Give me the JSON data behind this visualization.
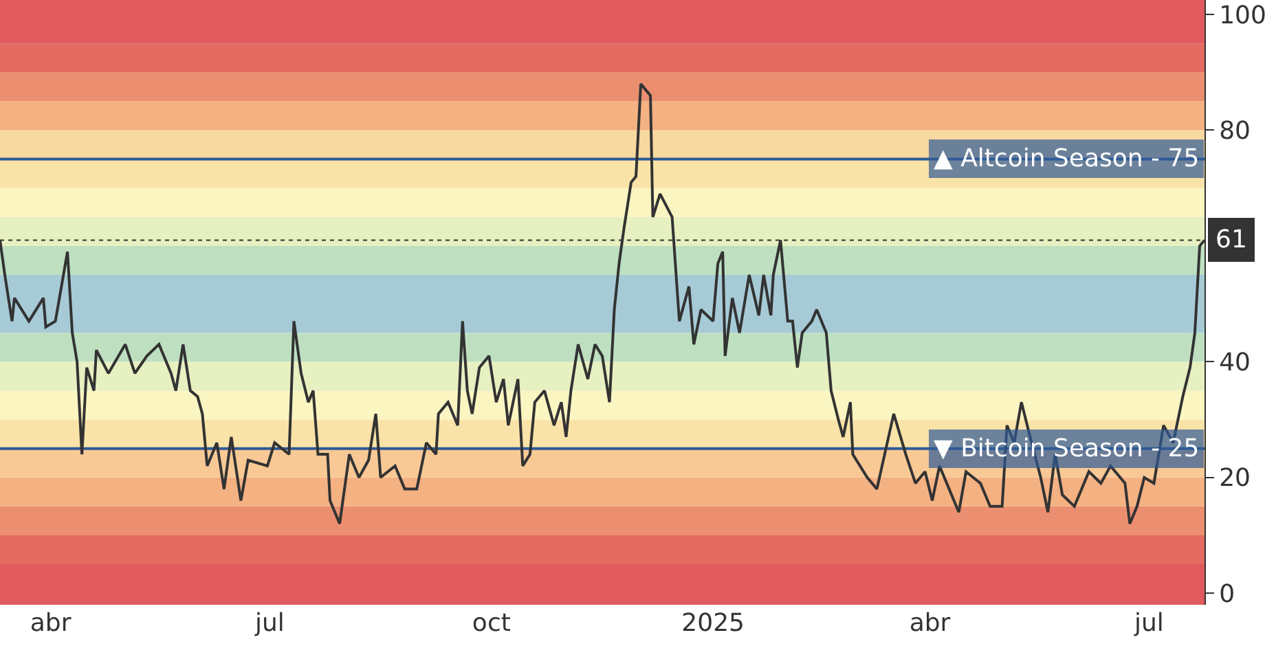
{
  "chart_data": {
    "type": "line",
    "x": [
      "2024-03-11",
      "2024-03-13",
      "2024-03-16",
      "2024-03-17",
      "2024-03-23",
      "2024-03-29",
      "2024-03-30",
      "2024-04-03",
      "2024-04-08",
      "2024-04-10",
      "2024-04-12",
      "2024-04-14",
      "2024-04-16",
      "2024-04-19",
      "2024-04-20",
      "2024-04-25",
      "2024-05-02",
      "2024-05-06",
      "2024-05-11",
      "2024-05-16",
      "2024-05-21",
      "2024-05-23",
      "2024-05-26",
      "2024-05-29",
      "2024-06-01",
      "2024-06-03",
      "2024-06-05",
      "2024-06-09",
      "2024-06-12",
      "2024-06-15",
      "2024-06-19",
      "2024-06-22",
      "2024-06-30",
      "2024-07-03",
      "2024-07-09",
      "2024-07-11",
      "2024-07-14",
      "2024-07-17",
      "2024-07-19",
      "2024-07-21",
      "2024-07-25",
      "2024-07-26",
      "2024-07-30",
      "2024-08-03",
      "2024-08-07",
      "2024-08-11",
      "2024-08-14",
      "2024-08-16",
      "2024-08-22",
      "2024-08-26",
      "2024-08-31",
      "2024-09-04",
      "2024-09-08",
      "2024-09-09",
      "2024-09-13",
      "2024-09-17",
      "2024-09-19",
      "2024-09-21",
      "2024-09-23",
      "2024-09-26",
      "2024-09-30",
      "2024-10-03",
      "2024-10-06",
      "2024-10-08",
      "2024-10-12",
      "2024-10-14",
      "2024-10-17",
      "2024-10-19",
      "2024-10-23",
      "2024-10-27",
      "2024-10-30",
      "2024-11-01",
      "2024-11-03",
      "2024-11-06",
      "2024-11-10",
      "2024-11-13",
      "2024-11-16",
      "2024-11-19",
      "2024-11-21",
      "2024-11-23",
      "2024-11-25",
      "2024-11-28",
      "2024-11-30",
      "2024-12-02",
      "2024-12-06",
      "2024-12-07",
      "2024-12-10",
      "2024-12-15",
      "2024-12-18",
      "2024-12-22",
      "2024-12-24",
      "2024-12-27",
      "2025-01-01",
      "2025-01-03",
      "2025-01-05",
      "2025-01-06",
      "2025-01-09",
      "2025-01-12",
      "2025-01-16",
      "2025-01-20",
      "2025-01-22",
      "2025-01-25",
      "2025-01-26",
      "2025-01-29",
      "2025-02-01",
      "2025-02-03",
      "2025-02-05",
      "2025-02-07",
      "2025-02-11",
      "2025-02-13",
      "2025-02-17",
      "2025-02-19",
      "2025-02-22",
      "2025-02-24",
      "2025-02-27",
      "2025-02-28",
      "2025-03-06",
      "2025-03-10",
      "2025-03-17",
      "2025-03-22",
      "2025-03-26",
      "2025-03-30",
      "2025-04-02",
      "2025-04-05",
      "2025-04-13",
      "2025-04-16",
      "2025-04-22",
      "2025-04-26",
      "2025-05-01",
      "2025-05-03",
      "2025-05-06",
      "2025-05-09",
      "2025-05-12",
      "2025-05-17",
      "2025-05-20",
      "2025-05-23",
      "2025-05-26",
      "2025-05-31",
      "2025-06-06",
      "2025-06-11",
      "2025-06-15",
      "2025-06-21",
      "2025-06-23",
      "2025-06-26",
      "2025-06-29",
      "2025-07-03",
      "2025-07-07",
      "2025-07-11",
      "2025-07-15",
      "2025-07-18",
      "2025-07-20",
      "2025-07-22",
      "2025-07-24"
    ],
    "series": [
      {
        "color": "#333333",
        "values": [
          61,
          55,
          47,
          51,
          47,
          51,
          46,
          47,
          59,
          45,
          40,
          24,
          39,
          35,
          42,
          38,
          43,
          38,
          41,
          43,
          38,
          35,
          43,
          35,
          34,
          31,
          22,
          26,
          18,
          27,
          16,
          23,
          22,
          26,
          24,
          47,
          38,
          33,
          35,
          24,
          24,
          16,
          12,
          24,
          20,
          23,
          31,
          20,
          22,
          18,
          18,
          26,
          24,
          31,
          33,
          29,
          47,
          35,
          31,
          39,
          41,
          33,
          37,
          29,
          37,
          22,
          24,
          33,
          35,
          29,
          33,
          27,
          35,
          43,
          37,
          43,
          41,
          33,
          49,
          57,
          63,
          71,
          72,
          88,
          86,
          65,
          69,
          65,
          47,
          53,
          43,
          49,
          47,
          57,
          59,
          41,
          51,
          45,
          55,
          48,
          55,
          48,
          55,
          61,
          47,
          47,
          39,
          45,
          47,
          49,
          45,
          35,
          30,
          27,
          33,
          24,
          20,
          18,
          31,
          24,
          19,
          21,
          16,
          22,
          14,
          21,
          19,
          15,
          15,
          29,
          26,
          33,
          28,
          20,
          14,
          24,
          17,
          15,
          21,
          19,
          22,
          19,
          12,
          15,
          20,
          19,
          29,
          26,
          34,
          39,
          45,
          60,
          61
        ]
      }
    ],
    "xlim": [
      "2024-03-11",
      "2025-07-24"
    ],
    "xticks": [
      {
        "value": "2024-04-01",
        "label": "abr"
      },
      {
        "value": "2024-07-01",
        "label": "jul"
      },
      {
        "value": "2024-10-01",
        "label": "oct"
      },
      {
        "value": "2025-01-01",
        "label": "2025"
      },
      {
        "value": "2025-04-01",
        "label": "abr"
      },
      {
        "value": "2025-07-01",
        "label": "jul"
      }
    ],
    "ylim": [
      -2,
      102.5
    ],
    "yticks": [
      0,
      20,
      40,
      80,
      100
    ],
    "line_style": "solid",
    "marker": "none",
    "ref_lines": [
      {
        "axis": "y",
        "value": 75,
        "label": "▲ Altcoin Season - 75",
        "color": "#2f5a96",
        "line_style": "solid"
      },
      {
        "axis": "y",
        "value": 25,
        "label": "▼ Bitcoin Season - 25",
        "color": "#2f5a96",
        "line_style": "solid"
      },
      {
        "axis": "y",
        "value": 61,
        "color": "#333333",
        "line_style": "dotted"
      }
    ],
    "annotations": [
      {
        "text": "61",
        "x": "2025-07-24",
        "y": 61
      }
    ],
    "bands": [
      {
        "axis": "y",
        "from": -2,
        "to": 5,
        "color": "#e05a5e"
      },
      {
        "axis": "y",
        "from": 5,
        "to": 10,
        "color": "#e46b62"
      },
      {
        "axis": "y",
        "from": 10,
        "to": 15,
        "color": "#eb8f70"
      },
      {
        "axis": "y",
        "from": 15,
        "to": 20,
        "color": "#f4b182"
      },
      {
        "axis": "y",
        "from": 20,
        "to": 25,
        "color": "#f8c995"
      },
      {
        "axis": "y",
        "from": 25,
        "to": 30,
        "color": "#fae3a8"
      },
      {
        "axis": "y",
        "from": 30,
        "to": 35,
        "color": "#fbf5c2"
      },
      {
        "axis": "y",
        "from": 35,
        "to": 40,
        "color": "#e6f0c0"
      },
      {
        "axis": "y",
        "from": 40,
        "to": 45,
        "color": "#bfe0c0"
      },
      {
        "axis": "y",
        "from": 45,
        "to": 55,
        "color": "#a6cbd6"
      },
      {
        "axis": "y",
        "from": 55,
        "to": 60,
        "color": "#bfe0c0"
      },
      {
        "axis": "y",
        "from": 60,
        "to": 65,
        "color": "#e6f0c0"
      },
      {
        "axis": "y",
        "from": 65,
        "to": 70,
        "color": "#fbf5c2"
      },
      {
        "axis": "y",
        "from": 70,
        "to": 75,
        "color": "#fae3a8"
      },
      {
        "axis": "y",
        "from": 75,
        "to": 80,
        "color": "#f8d9a0"
      },
      {
        "axis": "y",
        "from": 80,
        "to": 85,
        "color": "#f4b182"
      },
      {
        "axis": "y",
        "from": 85,
        "to": 90,
        "color": "#eb8f70"
      },
      {
        "axis": "y",
        "from": 90,
        "to": 95,
        "color": "#e46b62"
      },
      {
        "axis": "y",
        "from": 95,
        "to": 102.5,
        "color": "#e05a5e"
      }
    ]
  }
}
